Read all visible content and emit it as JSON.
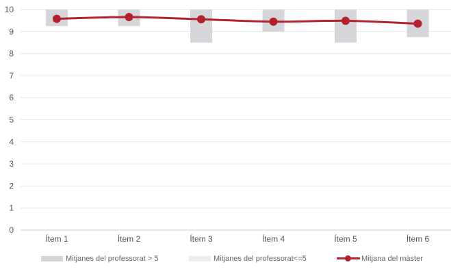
{
  "chart_data": {
    "type": "line",
    "categories": [
      "Ítem 1",
      "Ítem 2",
      "Ítem 3",
      "Ítem 4",
      "Ítem 5",
      "Ítem 6"
    ],
    "ylim": [
      0,
      10
    ],
    "yticks": [
      "0",
      "1",
      "2",
      "3",
      "4",
      "5",
      "6",
      "7",
      "8",
      "9",
      "10"
    ],
    "grid": true,
    "legend_position": "bottom",
    "series": [
      {
        "name": "Mitjanes del professorat > 5",
        "kind": "range-bar",
        "color": "#d6d5da",
        "low": [
          9.25,
          9.25,
          8.5,
          9.0,
          8.5,
          8.75
        ],
        "high": [
          10,
          10,
          10,
          10,
          10,
          10
        ]
      },
      {
        "name": "Mitjanes del professorat<=5",
        "kind": "range-bar",
        "color": "#ededed",
        "low": [],
        "high": []
      },
      {
        "name": "Mitjana del màster",
        "kind": "line",
        "color": "#b3212e",
        "values": [
          9.58,
          9.66,
          9.56,
          9.45,
          9.49,
          9.36
        ]
      }
    ]
  },
  "colors": {
    "grid": "#e6e6e6",
    "axis": "#cccccc",
    "tick_text": "#555555"
  }
}
